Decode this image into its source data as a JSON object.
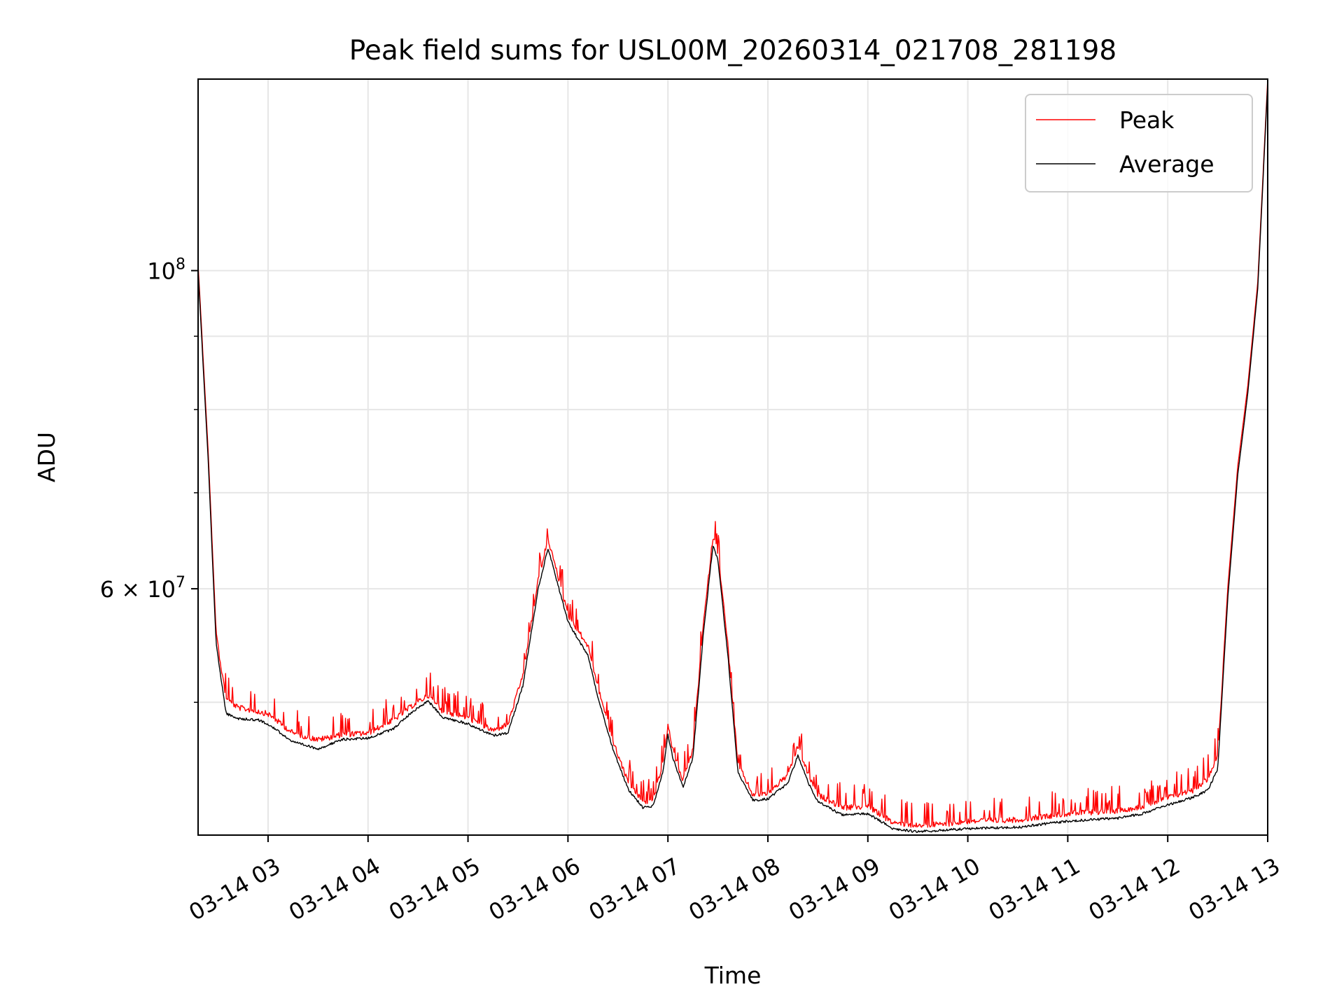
{
  "chart_data": {
    "type": "line",
    "title": "Peak field sums for USL00M_20260314_021708_281198",
    "xlabel": "Time",
    "ylabel": "ADU",
    "yscale": "log",
    "grid": true,
    "legend_position": "top-right",
    "xlim_hours": [
      2.3,
      13.0
    ],
    "ylim": [
      40400000,
      136000000
    ],
    "x_ticks": [
      {
        "hour": 3,
        "label": "03-14 03"
      },
      {
        "hour": 4,
        "label": "03-14 04"
      },
      {
        "hour": 5,
        "label": "03-14 05"
      },
      {
        "hour": 6,
        "label": "03-14 06"
      },
      {
        "hour": 7,
        "label": "03-14 07"
      },
      {
        "hour": 8,
        "label": "03-14 08"
      },
      {
        "hour": 9,
        "label": "03-14 09"
      },
      {
        "hour": 10,
        "label": "03-14 10"
      },
      {
        "hour": 11,
        "label": "03-14 11"
      },
      {
        "hour": 12,
        "label": "03-14 12"
      },
      {
        "hour": 13,
        "label": "03-14 13"
      }
    ],
    "y_major_ticks": [
      {
        "value": 60000000,
        "label_base": "6 × 10",
        "label_exp": "7"
      },
      {
        "value": 100000000,
        "label_base": "10",
        "label_exp": "8"
      }
    ],
    "y_minor_ticks": [
      50000000,
      70000000,
      80000000,
      90000000
    ],
    "series": [
      {
        "name": "Peak",
        "color": "#ff0000",
        "x_hours": [
          2.3,
          2.4,
          2.48,
          2.58,
          2.7,
          2.9,
          3.0,
          3.25,
          3.5,
          3.75,
          4.0,
          4.25,
          4.45,
          4.6,
          4.75,
          5.0,
          5.25,
          5.4,
          5.55,
          5.7,
          5.8,
          5.9,
          6.0,
          6.2,
          6.3,
          6.45,
          6.6,
          6.75,
          6.85,
          6.95,
          7.0,
          7.05,
          7.15,
          7.25,
          7.35,
          7.45,
          7.5,
          7.6,
          7.7,
          7.85,
          8.0,
          8.2,
          8.3,
          8.4,
          8.5,
          8.75,
          9.0,
          9.25,
          9.5,
          9.75,
          10.0,
          10.5,
          11.0,
          11.5,
          11.75,
          12.0,
          12.25,
          12.4,
          12.5,
          12.6,
          12.7,
          12.8,
          12.9,
          13.0
        ],
        "values": [
          101000000,
          75000000,
          56000000,
          50500000,
          49800000,
          49500000,
          49300000,
          47800000,
          47300000,
          47700000,
          47800000,
          48800000,
          50000000,
          50800000,
          49500000,
          49000000,
          48000000,
          48500000,
          52500000,
          61000000,
          65300000,
          61500000,
          57800000,
          55000000,
          51500000,
          47200000,
          44200000,
          42800000,
          42900000,
          45500000,
          48400000,
          46500000,
          44300000,
          46500000,
          56500000,
          65500000,
          64000000,
          55000000,
          45500000,
          43300000,
          43400000,
          44700000,
          46800000,
          44800000,
          43300000,
          42400000,
          42500000,
          41400000,
          41200000,
          41300000,
          41500000,
          41600000,
          42000000,
          42200000,
          42500000,
          43100000,
          43600000,
          44400000,
          46000000,
          60000000,
          73000000,
          83000000,
          98000000,
          136000000
        ]
      },
      {
        "name": "Average",
        "color": "#000000",
        "x_hours": [
          2.3,
          2.4,
          2.48,
          2.58,
          2.7,
          2.9,
          3.0,
          3.25,
          3.5,
          3.75,
          4.0,
          4.25,
          4.45,
          4.6,
          4.75,
          5.0,
          5.25,
          5.4,
          5.55,
          5.7,
          5.8,
          5.9,
          6.0,
          6.2,
          6.3,
          6.45,
          6.6,
          6.75,
          6.85,
          6.95,
          7.0,
          7.05,
          7.15,
          7.25,
          7.35,
          7.45,
          7.5,
          7.6,
          7.7,
          7.85,
          8.0,
          8.2,
          8.3,
          8.4,
          8.5,
          8.75,
          9.0,
          9.25,
          9.5,
          9.75,
          10.0,
          10.5,
          11.0,
          11.5,
          11.75,
          12.0,
          12.25,
          12.4,
          12.5,
          12.6,
          12.7,
          12.8,
          12.9,
          13.0
        ],
        "values": [
          100000000,
          74000000,
          55000000,
          49200000,
          48800000,
          48700000,
          48400000,
          47000000,
          46500000,
          47200000,
          47300000,
          48000000,
          49400000,
          50200000,
          48900000,
          48400000,
          47500000,
          47700000,
          51500000,
          60000000,
          64200000,
          60500000,
          57000000,
          54000000,
          50500000,
          46500000,
          43600000,
          42300000,
          42400000,
          44800000,
          47600000,
          45800000,
          43700000,
          45800000,
          55500000,
          64400000,
          63000000,
          54000000,
          44800000,
          42800000,
          42900000,
          44000000,
          46000000,
          44100000,
          42700000,
          41800000,
          41900000,
          40900000,
          40700000,
          40800000,
          40900000,
          41000000,
          41400000,
          41600000,
          41900000,
          42500000,
          43000000,
          43500000,
          45000000,
          59000000,
          72000000,
          82000000,
          97000000,
          135000000
        ]
      }
    ]
  }
}
